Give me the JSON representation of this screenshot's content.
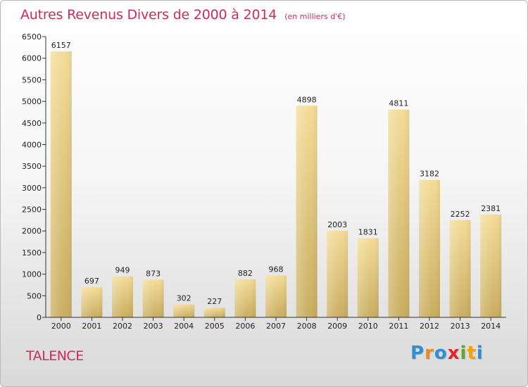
{
  "title": "Autres Revenus Divers de 2000 à 2014",
  "subtitle": "(en milliers d'€)",
  "city": "TALENCE",
  "logo": [
    "P",
    "r",
    "o",
    "x",
    "i",
    "t",
    "i"
  ],
  "logo_colors": [
    "#2f8fd3",
    "#f08a12",
    "#2f8fd3",
    "#e6232a",
    "#5aa832",
    "#f2a20f",
    "#2f8fd3"
  ],
  "colors": {
    "bar_top": "#f4dc98",
    "bar_bottom": "#c9ad60",
    "title": "#d12b5c",
    "axis": "#333333"
  },
  "chart_data": {
    "type": "bar",
    "categories": [
      "2000",
      "2001",
      "2002",
      "2003",
      "2004",
      "2005",
      "2006",
      "2007",
      "2008",
      "2009",
      "2010",
      "2011",
      "2012",
      "2013",
      "2014"
    ],
    "values": [
      6157,
      697,
      949,
      873,
      302,
      227,
      882,
      968,
      4898,
      2003,
      1831,
      4811,
      3182,
      2252,
      2381
    ],
    "ylim": [
      0,
      6500
    ],
    "yticks": [
      0,
      500,
      1000,
      1500,
      2000,
      2500,
      3000,
      3500,
      4000,
      4500,
      5000,
      5500,
      6000,
      6500
    ],
    "grid": false,
    "data_labels": true
  }
}
